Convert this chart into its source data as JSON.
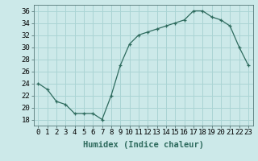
{
  "x": [
    0,
    1,
    2,
    3,
    4,
    5,
    6,
    7,
    8,
    9,
    10,
    11,
    12,
    13,
    14,
    15,
    16,
    17,
    18,
    19,
    20,
    21,
    22,
    23
  ],
  "y": [
    24,
    23,
    21,
    20.5,
    19,
    19,
    19,
    18,
    22,
    27,
    30.5,
    32,
    32.5,
    33,
    33.5,
    34,
    34.5,
    36,
    36,
    35,
    34.5,
    33.5,
    30,
    27
  ],
  "line_color": "#2e6b5e",
  "marker": "+",
  "bg_color": "#cce9e9",
  "grid_color": "#aad4d4",
  "xlabel": "Humidex (Indice chaleur)",
  "xlim": [
    -0.5,
    23.5
  ],
  "ylim": [
    17,
    37
  ],
  "yticks": [
    18,
    20,
    22,
    24,
    26,
    28,
    30,
    32,
    34,
    36
  ],
  "xticks": [
    0,
    1,
    2,
    3,
    4,
    5,
    6,
    7,
    8,
    9,
    10,
    11,
    12,
    13,
    14,
    15,
    16,
    17,
    18,
    19,
    20,
    21,
    22,
    23
  ],
  "xlabel_fontsize": 7.5,
  "tick_fontsize": 6.5
}
